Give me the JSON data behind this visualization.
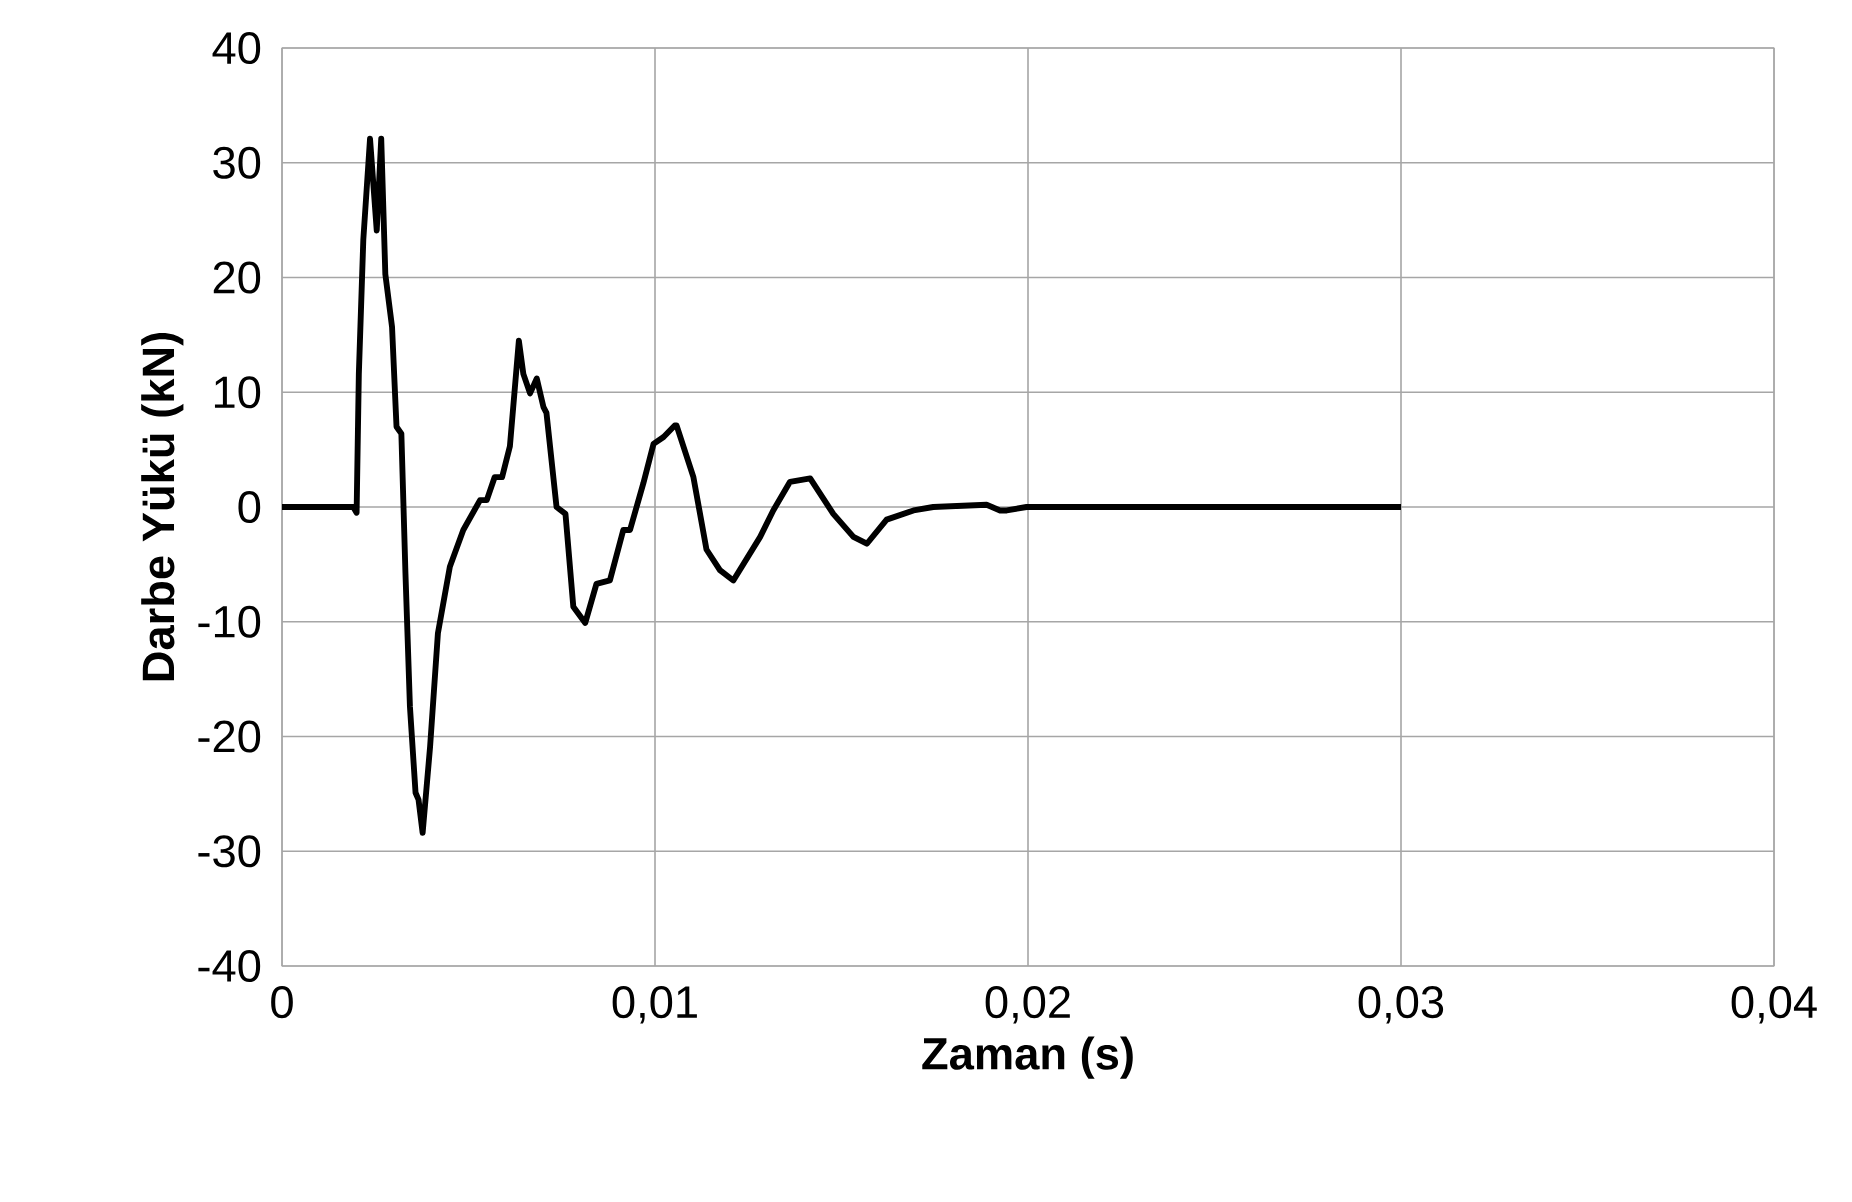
{
  "chart_data": {
    "type": "line",
    "xlabel": "Zaman (s)",
    "ylabel": "Darbe Yükü (kN)",
    "xlim": [
      0,
      0.04
    ],
    "ylim": [
      -40,
      40
    ],
    "xticks": [
      0,
      {
        "value": 0.01,
        "label": "0,01"
      },
      {
        "value": 0.02,
        "label": "0,02"
      },
      {
        "value": 0.03,
        "label": "0,03"
      },
      {
        "value": 0.04,
        "label": "0,04"
      }
    ],
    "yticks": [
      -40,
      -30,
      -20,
      -10,
      0,
      10,
      20,
      30,
      40
    ],
    "grid": true,
    "marker": "none",
    "line_style": "solid",
    "series": [
      {
        "color": "#000000",
        "x": [
          0,
          0.00191,
          0.002,
          0.00206,
          0.00218,
          0.00236,
          0.00254,
          0.00266,
          0.00277,
          0.00295,
          0.00307,
          0.0032,
          0.00331,
          0.00343,
          0.00358,
          0.00366,
          0.00377,
          0.00397,
          0.00418,
          0.0045,
          0.00486,
          0.00531,
          0.00549,
          0.0057,
          0.0059,
          0.00611,
          0.00635,
          0.00647,
          0.00665,
          0.00683,
          0.00701,
          0.00709,
          0.00736,
          0.0076,
          0.00781,
          0.00813,
          0.00843,
          0.00879,
          0.00915,
          0.00933,
          0.00969,
          0.00996,
          0.01023,
          0.01053,
          0.01058,
          0.01103,
          0.01138,
          0.01174,
          0.0121,
          0.01282,
          0.01317,
          0.01362,
          0.01416,
          0.01478,
          0.01532,
          0.01568,
          0.01621,
          0.01693,
          0.01746,
          0.01889,
          0.01925,
          0.01943,
          0.01996,
          0.03
        ],
        "values": [
          0,
          0,
          -0.5,
          11.6,
          23.3,
          32.1,
          24.1,
          32.1,
          20.3,
          15.7,
          7.0,
          6.4,
          -5.8,
          -17.4,
          -24.9,
          -25.5,
          -28.4,
          -20.9,
          -11.0,
          -5.2,
          -2.0,
          0.6,
          0.6,
          2.6,
          2.6,
          5.3,
          14.5,
          11.6,
          9.9,
          11.2,
          8.7,
          8.2,
          0,
          -0.6,
          -8.7,
          -10.1,
          -6.7,
          -6.4,
          -2.0,
          -2.0,
          2.1,
          5.5,
          6.1,
          7.1,
          7.1,
          2.6,
          -3.7,
          -5.5,
          -6.4,
          -2.6,
          -0.3,
          2.2,
          2.5,
          -0.6,
          -2.6,
          -3.2,
          -1.1,
          -0.3,
          0,
          0.2,
          -0.3,
          -0.3,
          0,
          0
        ]
      }
    ]
  }
}
